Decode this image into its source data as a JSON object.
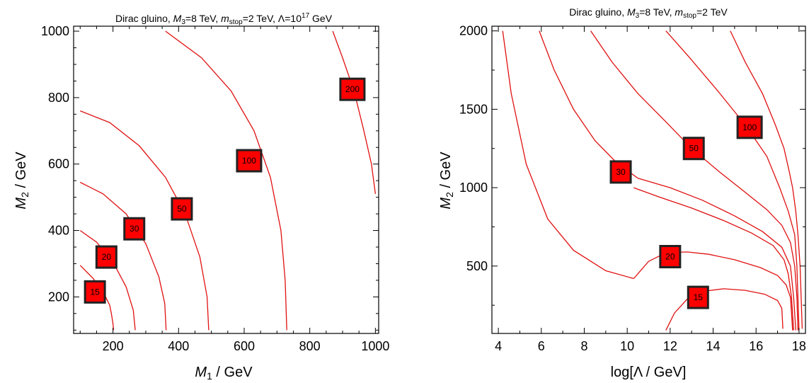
{
  "chart_data": [
    {
      "type": "line",
      "title_parts": {
        "pre": "Dirac gluino, ",
        "m3": "M",
        "m3sub": "3",
        "m3val": "=8 TeV, ",
        "ms": "m",
        "mssub": "stop",
        "msval": "=2 TeV, Λ=10",
        "exp": "17",
        "post": " GeV"
      },
      "xlabel_parts": {
        "var": "M",
        "sub": "1",
        "unit": " / GeV"
      },
      "ylabel_parts": {
        "var": "M",
        "sub": "2",
        "unit": " / GeV"
      },
      "xlim": [
        80,
        1010
      ],
      "ylim": [
        90,
        1015
      ],
      "xticks": [
        200,
        400,
        600,
        800,
        1000
      ],
      "yticks": [
        200,
        400,
        600,
        800,
        1000
      ],
      "xticks_minor": [
        100,
        150,
        250,
        300,
        350,
        450,
        500,
        550,
        650,
        700,
        750,
        850,
        900,
        950
      ],
      "yticks_minor": [
        100,
        150,
        250,
        300,
        350,
        450,
        500,
        550,
        650,
        700,
        750,
        850,
        900,
        950
      ],
      "series": [
        {
          "label": "15",
          "points": [
            [
              100,
              295
            ],
            [
              140,
              255
            ],
            [
              170,
              215
            ],
            [
              190,
              175
            ],
            [
              195,
              150
            ],
            [
              200,
              120
            ],
            [
              202,
              100
            ]
          ],
          "label_at": [
            145,
            215
          ]
        },
        {
          "label": "20",
          "points": [
            [
              100,
              400
            ],
            [
              150,
              365
            ],
            [
              200,
              305
            ],
            [
              240,
              230
            ],
            [
              262,
              160
            ],
            [
              268,
              100
            ]
          ],
          "label_at": [
            180,
            320
          ]
        },
        {
          "label": "30",
          "points": [
            [
              100,
              545
            ],
            [
              170,
              510
            ],
            [
              240,
              450
            ],
            [
              300,
              360
            ],
            [
              340,
              260
            ],
            [
              358,
              180
            ],
            [
              362,
              100
            ]
          ],
          "label_at": [
            265,
            405
          ]
        },
        {
          "label": "50",
          "points": [
            [
              100,
              760
            ],
            [
              190,
              725
            ],
            [
              280,
              655
            ],
            [
              360,
              560
            ],
            [
              420,
              450
            ],
            [
              465,
              320
            ],
            [
              487,
              200
            ],
            [
              492,
              100
            ]
          ],
          "label_at": [
            410,
            465
          ]
        },
        {
          "label": "100",
          "points": [
            [
              360,
              1000
            ],
            [
              470,
              920
            ],
            [
              560,
              820
            ],
            [
              630,
              700
            ],
            [
              680,
              560
            ],
            [
              712,
              400
            ],
            [
              725,
              250
            ],
            [
              730,
              100
            ]
          ],
          "label_at": [
            615,
            610
          ]
        },
        {
          "label": "200",
          "points": [
            [
              870,
              1000
            ],
            [
              900,
              920
            ],
            [
              935,
              820
            ],
            [
              965,
              700
            ],
            [
              988,
              600
            ],
            [
              1000,
              510
            ]
          ],
          "label_at": [
            930,
            825
          ]
        }
      ]
    },
    {
      "type": "line",
      "title_parts": {
        "pre": "Dirac gluino, ",
        "m3": "M",
        "m3sub": "3",
        "m3val": "=8 TeV, ",
        "ms": "m",
        "mssub": "stop",
        "msval": "=2 TeV"
      },
      "xlabel": "log[Λ / GeV]",
      "ylabel_parts": {
        "var": "M",
        "sub": "2",
        "unit": " / GeV"
      },
      "xlim": [
        3.7,
        18.3
      ],
      "ylim": [
        70,
        2030
      ],
      "xticks": [
        4,
        6,
        8,
        10,
        12,
        14,
        16,
        18
      ],
      "yticks": [
        500,
        1000,
        1500,
        2000
      ],
      "xticks_minor": [
        5,
        7,
        9,
        11,
        13,
        15,
        17
      ],
      "yticks_minor": [
        250,
        750,
        1250,
        1750
      ],
      "series": [
        {
          "label": "15",
          "points": [
            [
              11.8,
              90
            ],
            [
              12.2,
              200
            ],
            [
              12.8,
              290
            ],
            [
              13.6,
              340
            ],
            [
              14.5,
              355
            ],
            [
              15.5,
              345
            ],
            [
              16.4,
              320
            ],
            [
              17.0,
              280
            ],
            [
              17.2,
              230
            ],
            [
              17.25,
              100
            ]
          ],
          "label_at": [
            13.3,
            300
          ]
        },
        {
          "label": "20",
          "points": [
            [
              10.3,
              420
            ],
            [
              11.0,
              530
            ],
            [
              11.8,
              585
            ],
            [
              12.8,
              590
            ],
            [
              13.8,
              575
            ],
            [
              15.0,
              540
            ],
            [
              16.2,
              490
            ],
            [
              17.0,
              440
            ],
            [
              17.4,
              380
            ],
            [
              17.6,
              300
            ],
            [
              17.65,
              200
            ],
            [
              17.7,
              90
            ]
          ],
          "label_at": [
            12.0,
            560
          ]
        },
        {
          "label": "30",
          "points": [
            [
              4.2,
              2000
            ],
            [
              4.6,
              1600
            ],
            [
              5.3,
              1150
            ],
            [
              6.3,
              800
            ],
            [
              7.5,
              600
            ],
            [
              9.0,
              470
            ],
            [
              10.3,
              420
            ]
          ],
          "label_at": [
            9.7,
            1100
          ]
        },
        {
          "label": "30b",
          "points": [
            [
              10.3,
              1000
            ],
            [
              11.5,
              940
            ],
            [
              13.0,
              870
            ],
            [
              14.5,
              790
            ],
            [
              15.8,
              710
            ],
            [
              16.8,
              630
            ],
            [
              17.3,
              540
            ],
            [
              17.5,
              450
            ],
            [
              17.65,
              300
            ],
            [
              17.75,
              90
            ]
          ],
          "label_at": [
            9.7,
            1100
          ],
          "unlabeled": true
        },
        {
          "label": "50",
          "points": [
            [
              5.9,
              2000
            ],
            [
              6.6,
              1750
            ],
            [
              7.5,
              1500
            ],
            [
              8.5,
              1300
            ],
            [
              9.5,
              1160
            ],
            [
              10.5,
              1060
            ],
            [
              12.0,
              1000
            ],
            [
              13.5,
              920
            ],
            [
              15.0,
              820
            ],
            [
              16.3,
              720
            ],
            [
              17.2,
              620
            ],
            [
              17.6,
              500
            ],
            [
              17.75,
              300
            ],
            [
              17.85,
              90
            ]
          ],
          "label_at": [
            13.1,
            1250
          ],
          "unlabeled": true
        },
        {
          "label": "50",
          "points": [
            [
              8.3,
              2000
            ],
            [
              9.3,
              1800
            ],
            [
              10.5,
              1600
            ],
            [
              11.8,
              1420
            ],
            [
              13.0,
              1250
            ],
            [
              14.3,
              1100
            ],
            [
              15.5,
              970
            ],
            [
              16.5,
              860
            ],
            [
              17.2,
              760
            ],
            [
              17.6,
              650
            ],
            [
              17.8,
              500
            ],
            [
              17.9,
              300
            ],
            [
              17.95,
              90
            ]
          ],
          "label_at": [
            13.1,
            1250
          ]
        },
        {
          "label": "100",
          "points": [
            [
              11.8,
              2000
            ],
            [
              12.9,
              1830
            ],
            [
              14.2,
              1620
            ],
            [
              15.5,
              1400
            ],
            [
              16.5,
              1200
            ],
            [
              17.1,
              1000
            ],
            [
              17.5,
              850
            ],
            [
              17.8,
              700
            ],
            [
              17.9,
              500
            ],
            [
              17.95,
              300
            ],
            [
              18.0,
              90
            ]
          ],
          "label_at": [
            15.7,
            1385
          ]
        },
        {
          "label": "100b",
          "points": [
            [
              14.8,
              2000
            ],
            [
              15.5,
              1800
            ],
            [
              16.3,
              1600
            ],
            [
              16.9,
              1400
            ],
            [
              17.3,
              1250
            ],
            [
              17.55,
              1100
            ],
            [
              17.7,
              1000
            ],
            [
              17.85,
              850
            ],
            [
              17.95,
              700
            ],
            [
              18.05,
              500
            ],
            [
              18.1,
              300
            ],
            [
              18.15,
              100
            ]
          ],
          "label_at": [
            15.7,
            1385
          ],
          "unlabeled": true
        }
      ]
    }
  ]
}
